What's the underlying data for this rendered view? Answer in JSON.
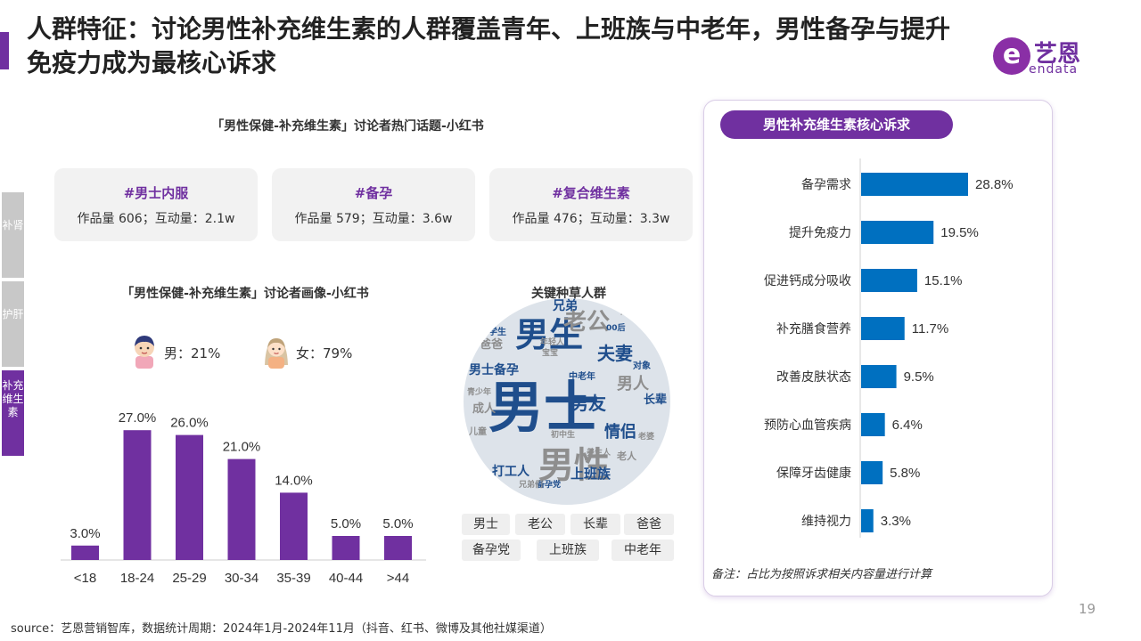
{
  "title": "人群特征：讨论男性补充维生素的人群覆盖青年、上班族与中老年，男性备孕与提升免疫力成为最核心诉求",
  "logo": {
    "mark": "e",
    "cn": "艺恩",
    "en": "endata"
  },
  "side_tabs": [
    {
      "label": "补肾",
      "active": false
    },
    {
      "label": "护肝",
      "active": false
    },
    {
      "label": "补充维生素",
      "active": true
    }
  ],
  "topics": {
    "title": "「男性保健-补充维生素」讨论者热门话题-小红书",
    "cards": [
      {
        "tag": "#男士内服",
        "stats": "作品量 606；互动量：2.1w"
      },
      {
        "tag": "#备孕",
        "stats": "作品量 579；互动量：3.6w"
      },
      {
        "tag": "#复合维生素",
        "stats": "作品量 476；互动量：3.3w"
      }
    ]
  },
  "portrait": {
    "title": "「男性保健-补充维生素」讨论者画像-小红书",
    "male": "男：21%",
    "female": "女：79%"
  },
  "wordcloud": {
    "title": "关键种草人群",
    "words": [
      {
        "text": "男士",
        "size": 62,
        "color": "#1f4e8c"
      },
      {
        "text": "男生",
        "size": 38,
        "color": "#1f4e8c"
      },
      {
        "text": "男性",
        "size": 40,
        "color": "#8e8e8e"
      },
      {
        "text": "老公",
        "size": 26,
        "color": "#8e8e8e"
      },
      {
        "text": "夫妻",
        "size": 20,
        "color": "#1f4e8c"
      },
      {
        "text": "男友",
        "size": 20,
        "color": "#1f4e8c"
      },
      {
        "text": "情侣",
        "size": 18,
        "color": "#1f4e8c"
      },
      {
        "text": "男人",
        "size": 18,
        "color": "#8e8e8e"
      },
      {
        "text": "男士备孕",
        "size": 14,
        "color": "#1f4e8c"
      },
      {
        "text": "上班族",
        "size": 15,
        "color": "#1f4e8c"
      },
      {
        "text": "打工人",
        "size": 14,
        "color": "#1f4e8c"
      },
      {
        "text": "兄弟",
        "size": 14,
        "color": "#1f4e8c"
      },
      {
        "text": "爸爸",
        "size": 13,
        "color": "#8e8e8e"
      },
      {
        "text": "成人",
        "size": 13,
        "color": "#8e8e8e"
      },
      {
        "text": "长辈",
        "size": 13,
        "color": "#1f4e8c"
      },
      {
        "text": "老人",
        "size": 11,
        "color": "#8e8e8e"
      },
      {
        "text": "中老年",
        "size": 10,
        "color": "#1f4e8c"
      },
      {
        "text": "学生",
        "size": 10,
        "color": "#1f4e8c"
      },
      {
        "text": "备孕党",
        "size": 9,
        "color": "#1f4e8c"
      },
      {
        "text": "儿童",
        "size": 10,
        "color": "#8e8e8e"
      },
      {
        "text": "青少年",
        "size": 9,
        "color": "#8e8e8e"
      },
      {
        "text": "年轻人",
        "size": 9,
        "color": "#8e8e8e"
      },
      {
        "text": "对象",
        "size": 10,
        "color": "#1f4e8c"
      },
      {
        "text": "00后",
        "size": 9,
        "color": "#1f4e8c"
      },
      {
        "text": "老婆",
        "size": 9,
        "color": "#8e8e8e"
      },
      {
        "text": "初中生",
        "size": 9,
        "color": "#8e8e8e"
      },
      {
        "text": "兄弟们",
        "size": 9,
        "color": "#8e8e8e"
      },
      {
        "text": "养生人",
        "size": 9,
        "color": "#8e8e8e"
      },
      {
        "text": "宝宝",
        "size": 9,
        "color": "#8e8e8e"
      },
      {
        "text": "熬夜党",
        "size": 9,
        "color": "#8e8e8e"
      }
    ],
    "chips": [
      "男士",
      "老公",
      "长辈",
      "爸爸",
      "备孕党",
      "上班族",
      "中老年"
    ]
  },
  "chart_data": [
    {
      "type": "bar",
      "title": "",
      "categories": [
        "<18",
        "18-24",
        "25-29",
        "30-34",
        "35-39",
        "40-44",
        ">44"
      ],
      "values": [
        3.0,
        27.0,
        26.0,
        21.0,
        14.0,
        5.0,
        5.0
      ],
      "value_labels": [
        "3.0%",
        "27.0%",
        "26.0%",
        "21.0%",
        "14.0%",
        "5.0%",
        "5.0%"
      ],
      "ylim": [
        0,
        30
      ],
      "color": "#7030a0",
      "grid": false
    },
    {
      "type": "bar",
      "orientation": "horizontal",
      "title": "男性补充维生素核心诉求",
      "categories": [
        "备孕需求",
        "提升免疫力",
        "促进钙成分吸收",
        "补充膳食营养",
        "改善皮肤状态",
        "预防心血管疾病",
        "保障牙齿健康",
        "维持视力"
      ],
      "values": [
        28.8,
        19.5,
        15.1,
        11.7,
        9.5,
        6.4,
        5.8,
        3.3
      ],
      "value_labels": [
        "28.8%",
        "19.5%",
        "15.1%",
        "11.7%",
        "9.5%",
        "6.4%",
        "5.8%",
        "3.3%"
      ],
      "xlim": [
        0,
        36
      ],
      "color": "#0070c0",
      "grid": false
    }
  ],
  "note": "备注：占比为按照诉求相关内容量进行计算",
  "source": "source：艺恩营销智库，数据统计周期：2024年1月-2024年11月（抖音、红书、微博及其他社媒渠道）",
  "page_number": "19"
}
